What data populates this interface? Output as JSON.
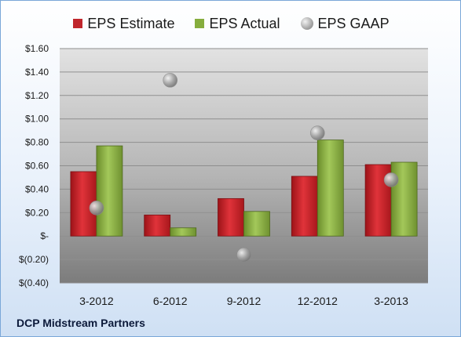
{
  "company": "DCP Midstream Partners",
  "colors": {
    "estimate": "#c0262c",
    "actual": "#86ad3d",
    "gaap": "#a6a6a6"
  },
  "chart_data": {
    "type": "bar",
    "categories": [
      "3-2012",
      "6-2012",
      "9-2012",
      "12-2012",
      "3-2013"
    ],
    "series": [
      {
        "name": "EPS Estimate",
        "type": "bar",
        "values": [
          0.55,
          0.18,
          0.32,
          0.51,
          0.61
        ]
      },
      {
        "name": "EPS Actual",
        "type": "bar",
        "values": [
          0.77,
          0.07,
          0.21,
          0.82,
          0.63
        ]
      },
      {
        "name": "EPS GAAP",
        "type": "scatter",
        "values": [
          0.24,
          1.33,
          -0.16,
          0.88,
          0.48
        ]
      }
    ],
    "ylim": [
      -0.4,
      1.6
    ],
    "yticks": [
      {
        "value": 1.6,
        "label": "$1.60"
      },
      {
        "value": 1.4,
        "label": "$1.40"
      },
      {
        "value": 1.2,
        "label": "$1.20"
      },
      {
        "value": 1.0,
        "label": "$1.00"
      },
      {
        "value": 0.8,
        "label": "$0.80"
      },
      {
        "value": 0.6,
        "label": "$0.60"
      },
      {
        "value": 0.4,
        "label": "$0.40"
      },
      {
        "value": 0.2,
        "label": "$0.20"
      },
      {
        "value": 0.0,
        "label": "$-"
      },
      {
        "value": -0.2,
        "label": "$(0.20)"
      },
      {
        "value": -0.4,
        "label": "$(0.40)"
      }
    ],
    "grid": true,
    "legend_position": "top"
  }
}
